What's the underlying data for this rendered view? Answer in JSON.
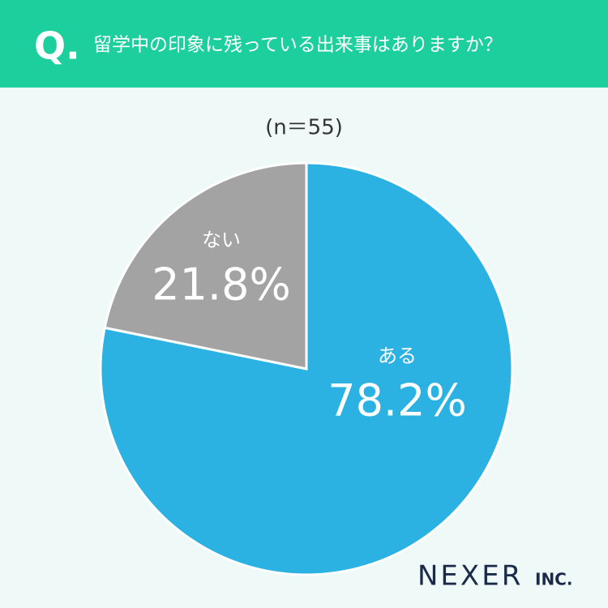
{
  "header_marker": "Q.",
  "logo": "NEXER",
  "logo_suffix": "INC.",
  "chart_data": {
    "type": "pie",
    "title": "留学中の印象に残っている出来事はありますか？",
    "subtitle": "(n＝55)",
    "categories": [
      "ある",
      "ない"
    ],
    "values": [
      78.2,
      21.8
    ],
    "value_labels": [
      "78.2%",
      "21.8%"
    ],
    "colors": [
      "#2cb2e2",
      "#a3a3a3"
    ]
  }
}
